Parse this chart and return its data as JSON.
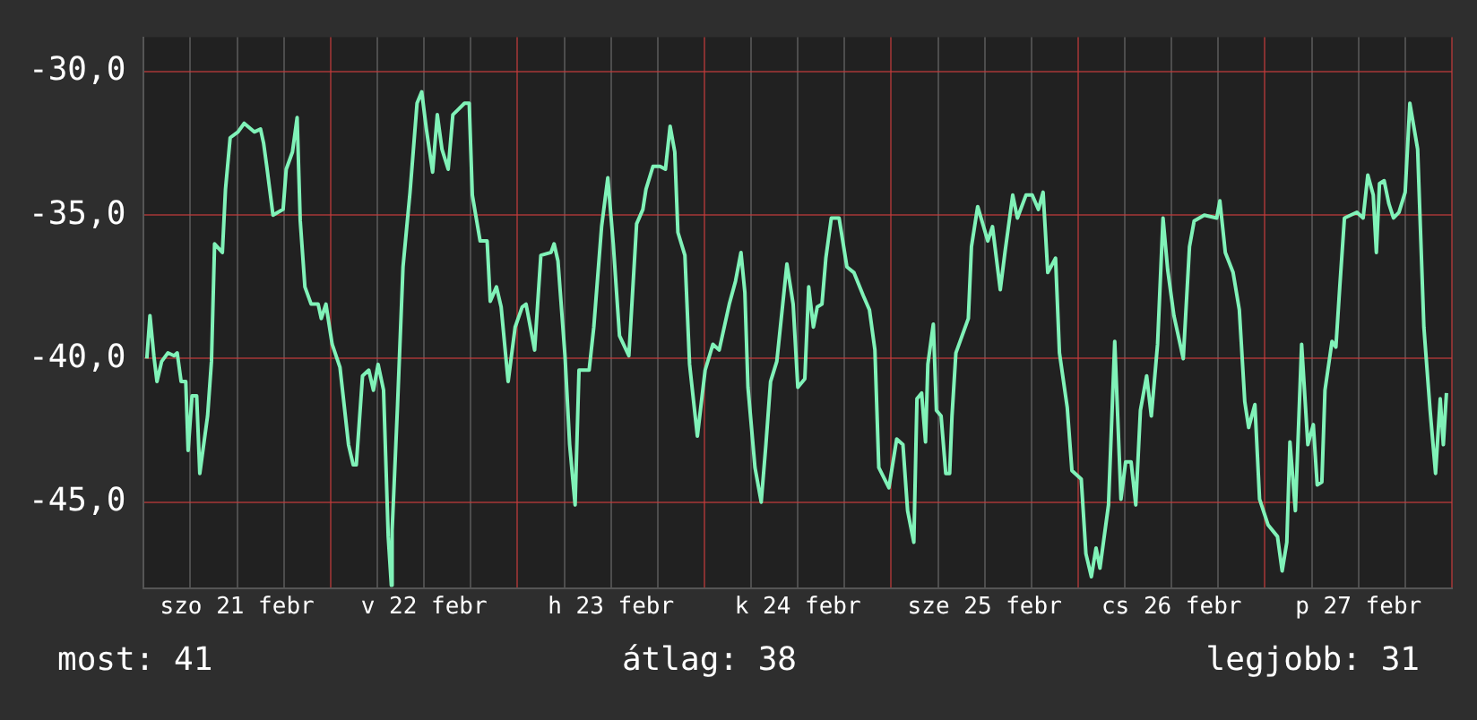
{
  "chart_data": {
    "type": "line",
    "color": "#80f2b8",
    "marker": "none",
    "line_style": "solid",
    "legend": false,
    "grid": true,
    "xlim": [
      "--02-21T00:00",
      "--02-28T00:00"
    ],
    "xticks": [
      {
        "value": "--02-21T00:00",
        "label": null
      },
      {
        "value": "--02-21T06:00",
        "label": null
      },
      {
        "value": "--02-21T12:00",
        "label": "szo 21 febr"
      },
      {
        "value": "--02-21T18:00",
        "label": null
      },
      {
        "value": "--02-22T00:00",
        "label": null
      },
      {
        "value": "--02-22T06:00",
        "label": null
      },
      {
        "value": "--02-22T12:00",
        "label": "v 22 febr"
      },
      {
        "value": "--02-22T18:00",
        "label": null
      },
      {
        "value": "--02-23T00:00",
        "label": null
      },
      {
        "value": "--02-23T06:00",
        "label": null
      },
      {
        "value": "--02-23T12:00",
        "label": "h 23 febr"
      },
      {
        "value": "--02-23T18:00",
        "label": null
      },
      {
        "value": "--02-24T00:00",
        "label": null
      },
      {
        "value": "--02-24T06:00",
        "label": null
      },
      {
        "value": "--02-24T12:00",
        "label": "k 24 febr"
      },
      {
        "value": "--02-24T18:00",
        "label": null
      },
      {
        "value": "--02-25T00:00",
        "label": null
      },
      {
        "value": "--02-25T06:00",
        "label": null
      },
      {
        "value": "--02-25T12:00",
        "label": "sze 25 febr"
      },
      {
        "value": "--02-25T18:00",
        "label": null
      },
      {
        "value": "--02-26T00:00",
        "label": null
      },
      {
        "value": "--02-26T06:00",
        "label": null
      },
      {
        "value": "--02-26T12:00",
        "label": "cs 26 febr"
      },
      {
        "value": "--02-26T18:00",
        "label": null
      },
      {
        "value": "--02-27T00:00",
        "label": null
      },
      {
        "value": "--02-27T06:00",
        "label": null
      },
      {
        "value": "--02-27T12:00",
        "label": "p 27 febr"
      },
      {
        "value": "--02-27T18:00",
        "label": null
      },
      {
        "value": "--02-28T00:00",
        "label": null
      }
    ],
    "ylim": [
      -48,
      -28.8
    ],
    "yticks": [
      {
        "value": -45,
        "label": "-45,0"
      },
      {
        "value": -40,
        "label": "-40,0"
      },
      {
        "value": -35,
        "label": "-35,0"
      },
      {
        "value": -30,
        "label": "-30,0"
      }
    ],
    "annotations": [
      "most: 41",
      "átlag: 38",
      "legjobb: 31"
    ],
    "x": [
      "--02-21T00:24",
      "--02-21T00:48",
      "--02-21T01:18",
      "--02-21T01:42",
      "--02-21T02:18",
      "--02-21T03:06",
      "--02-21T03:54",
      "--02-21T04:18",
      "--02-21T04:48",
      "--02-21T05:24",
      "--02-21T05:42",
      "--02-21T06:12",
      "--02-21T06:48",
      "--02-21T07:12",
      "--02-21T08:12",
      "--02-21T08:42",
      "--02-21T09:06",
      "--02-21T10:06",
      "--02-21T10:30",
      "--02-21T11:06",
      "--02-21T12:06",
      "--02-21T12:54",
      "--02-21T14:12",
      "--02-21T15:00",
      "--02-21T15:24",
      "--02-21T15:48",
      "--02-21T16:36",
      "--02-21T17:54",
      "--02-21T18:18",
      "--02-21T19:06",
      "--02-21T19:42",
      "--02-21T20:06",
      "--02-21T20:42",
      "--02-21T21:30",
      "--02-21T22:24",
      "--02-21T22:48",
      "--02-21T23:24",
      "--02-22T00:12",
      "--02-22T01:12",
      "--02-22T02:18",
      "--02-22T02:54",
      "--02-22T03:18",
      "--02-22T04:06",
      "--02-22T04:54",
      "--02-22T05:30",
      "--02-22T06:06",
      "--02-22T06:48",
      "--02-22T07:24",
      "--02-22T07:48",
      "--02-22T07:54",
      "--02-22T08:36",
      "--02-22T09:18",
      "--02-22T10:12",
      "--02-22T11:06",
      "--02-22T11:42",
      "--02-22T12:18",
      "--02-22T13:06",
      "--02-22T13:42",
      "--02-22T14:18",
      "--02-22T15:06",
      "--02-22T15:42",
      "--02-22T17:12",
      "--02-22T17:48",
      "--02-22T18:12",
      "--02-22T19:12",
      "--02-22T20:06",
      "--02-22T20:30",
      "--02-22T21:18",
      "--02-22T21:54",
      "--02-22T22:48",
      "--02-22T23:42",
      "--02-23T00:36",
      "--02-23T01:06",
      "--02-23T02:12",
      "--02-23T03:00",
      "--02-23T04:18",
      "--02-23T04:42",
      "--02-23T05:12",
      "--02-23T06:06",
      "--02-23T06:42",
      "--02-23T07:24",
      "--02-23T07:54",
      "--02-23T09:12",
      "--02-23T09:48",
      "--02-23T10:48",
      "--02-23T11:36",
      "--02-23T12:18",
      "--02-23T13:06",
      "--02-23T14:18",
      "--02-23T15:18",
      "--02-23T16:06",
      "--02-23T16:30",
      "--02-23T17:24",
      "--02-23T18:18",
      "--02-23T19:00",
      "--02-23T19:36",
      "--02-23T20:12",
      "--02-23T20:36",
      "--02-23T21:30",
      "--02-23T22:06",
      "--02-23T23:06",
      "--02-24T00:06",
      "--02-24T01:06",
      "--02-24T01:54",
      "--02-24T03:12",
      "--02-24T04:00",
      "--02-24T04:42",
      "--02-24T05:12",
      "--02-24T05:36",
      "--02-24T06:30",
      "--02-24T07:18",
      "--02-24T07:54",
      "--02-24T08:30",
      "--02-24T09:18",
      "--02-24T10:36",
      "--02-24T11:24",
      "--02-24T12:00",
      "--02-24T12:54",
      "--02-24T13:24",
      "--02-24T14:00",
      "--02-24T14:30",
      "--02-24T15:06",
      "--02-24T15:36",
      "--02-24T16:18",
      "--02-24T17:18",
      "--02-24T18:18",
      "--02-24T19:12",
      "--02-24T20:24",
      "--02-24T21:12",
      "--02-24T21:54",
      "--02-24T22:24",
      "--02-24T23:42",
      "--02-25T00:42",
      "--02-25T01:30",
      "--02-25T02:06",
      "--02-25T02:54",
      "--02-25T03:18",
      "--02-25T03:54",
      "--02-25T04:24",
      "--02-25T04:42",
      "--02-25T05:24",
      "--02-25T05:48",
      "--02-25T06:24",
      "--02-25T07:00",
      "--02-25T07:30",
      "--02-25T07:48",
      "--02-25T08:18",
      "--02-25T09:06",
      "--02-25T09:54",
      "--02-25T10:18",
      "--02-25T11:06",
      "--02-25T12:24",
      "--02-25T13:00",
      "--02-25T14:00",
      "--02-25T14:36",
      "--02-25T15:36",
      "--02-25T16:12",
      "--02-25T17:18",
      "--02-25T18:06",
      "--02-25T18:54",
      "--02-25T19:30",
      "--02-25T20:06",
      "--02-25T21:06",
      "--02-25T21:36",
      "--02-25T22:36",
      "--02-25T23:12",
      "--02-26T00:24",
      "--02-26T01:00",
      "--02-26T01:42",
      "--02-26T02:18",
      "--02-26T02:48",
      "--02-26T03:18",
      "--02-26T03:54",
      "--02-26T04:42",
      "--02-26T05:30",
      "--02-26T06:06",
      "--02-26T06:48",
      "--02-26T07:24",
      "--02-26T08:00",
      "--02-26T08:48",
      "--02-26T09:24",
      "--02-26T10:12",
      "--02-26T10:54",
      "--02-26T11:30",
      "--02-26T12:18",
      "--02-26T13:30",
      "--02-26T14:18",
      "--02-26T14:54",
      "--02-26T16:12",
      "--02-26T17:48",
      "--02-26T18:12",
      "--02-26T18:54",
      "--02-26T19:54",
      "--02-26T20:42",
      "--02-26T21:24",
      "--02-26T21:54",
      "--02-26T22:42",
      "--02-26T23:18",
      "--02-27T00:24",
      "--02-27T01:36",
      "--02-27T02:12",
      "--02-27T02:48",
      "--02-27T03:12",
      "--02-27T03:54",
      "--02-27T04:42",
      "--02-27T05:30",
      "--02-27T06:12",
      "--02-27T06:42",
      "--02-27T07:18",
      "--02-27T07:42",
      "--02-27T08:36",
      "--02-27T09:06",
      "--02-27T09:36",
      "--02-27T10:12",
      "--02-27T11:48",
      "--02-27T12:36",
      "--02-27T13:12",
      "--02-27T13:54",
      "--02-27T14:18",
      "--02-27T14:42",
      "--02-27T15:18",
      "--02-27T15:54",
      "--02-27T16:30",
      "--02-27T17:12",
      "--02-27T18:00",
      "--02-27T18:36",
      "--02-27T19:36",
      "--02-27T20:24",
      "--02-27T21:12",
      "--02-27T21:54",
      "--02-27T22:30",
      "--02-27T22:54",
      "--02-27T23:18"
    ],
    "values": [
      -40.0,
      -38.5,
      -39.9,
      -40.8,
      -40.1,
      -39.8,
      -39.9,
      -39.8,
      -40.8,
      -40.8,
      -43.2,
      -41.3,
      -41.3,
      -44.0,
      -42.0,
      -40.1,
      -36.0,
      -36.3,
      -34.1,
      -32.3,
      -32.1,
      -31.8,
      -32.1,
      -32.0,
      -32.5,
      -33.3,
      -35.0,
      -34.8,
      -33.4,
      -32.8,
      -31.6,
      -35.2,
      -37.5,
      -38.1,
      -38.1,
      -38.6,
      -38.1,
      -39.5,
      -40.3,
      -43.0,
      -43.7,
      -43.7,
      -40.6,
      -40.4,
      -41.1,
      -40.2,
      -41.1,
      -46.2,
      -47.9,
      -46.0,
      -41.6,
      -36.8,
      -34.2,
      -31.1,
      -30.7,
      -32.0,
      -33.5,
      -31.5,
      -32.7,
      -33.4,
      -31.5,
      -31.1,
      -31.1,
      -34.3,
      -35.9,
      -35.9,
      -38.0,
      -37.5,
      -38.2,
      -40.8,
      -38.9,
      -38.2,
      -38.1,
      -39.7,
      -36.4,
      -36.3,
      -36.0,
      -36.6,
      -39.9,
      -43.0,
      -45.1,
      -40.4,
      -40.4,
      -38.9,
      -35.4,
      -33.7,
      -36.0,
      -39.2,
      -39.9,
      -35.3,
      -34.8,
      -34.1,
      -33.3,
      -33.3,
      -33.4,
      -31.9,
      -32.8,
      -35.6,
      -36.4,
      -40.2,
      -42.7,
      -40.4,
      -39.5,
      -39.7,
      -38.1,
      -37.3,
      -36.3,
      -37.7,
      -41.0,
      -43.8,
      -45.0,
      -43.0,
      -40.8,
      -40.1,
      -36.7,
      -38.1,
      -41.0,
      -40.7,
      -37.5,
      -38.9,
      -38.2,
      -38.1,
      -36.5,
      -35.1,
      -35.1,
      -36.8,
      -37.0,
      -37.8,
      -38.3,
      -39.7,
      -43.8,
      -44.5,
      -42.8,
      -43.0,
      -45.3,
      -46.4,
      -41.4,
      -41.2,
      -42.9,
      -40.2,
      -38.8,
      -41.8,
      -42.0,
      -44.0,
      -44.0,
      -42.0,
      -39.8,
      -39.2,
      -38.6,
      -36.1,
      -34.7,
      -35.9,
      -35.4,
      -37.6,
      -36.3,
      -34.3,
      -35.1,
      -34.3,
      -34.3,
      -34.8,
      -34.2,
      -37.0,
      -36.5,
      -39.8,
      -41.7,
      -43.9,
      -44.2,
      -46.8,
      -47.6,
      -46.6,
      -47.3,
      -46.3,
      -45.1,
      -39.4,
      -44.9,
      -43.6,
      -43.6,
      -45.1,
      -41.8,
      -40.6,
      -42.0,
      -39.5,
      -35.1,
      -36.9,
      -38.5,
      -40.0,
      -36.1,
      -35.2,
      -35.0,
      -35.1,
      -34.5,
      -36.3,
      -37.0,
      -38.3,
      -41.5,
      -42.4,
      -41.6,
      -44.9,
      -45.8,
      -46.2,
      -47.4,
      -46.4,
      -42.9,
      -45.3,
      -39.5,
      -43.0,
      -42.3,
      -44.4,
      -44.3,
      -41.1,
      -39.4,
      -39.6,
      -37.5,
      -35.1,
      -34.9,
      -35.1,
      -33.6,
      -34.3,
      -36.3,
      -33.9,
      -33.8,
      -34.6,
      -35.1,
      -34.9,
      -34.2,
      -31.1,
      -32.7,
      -38.9,
      -41.8,
      -44.0,
      -41.4,
      -43.0,
      -41.2
    ]
  }
}
